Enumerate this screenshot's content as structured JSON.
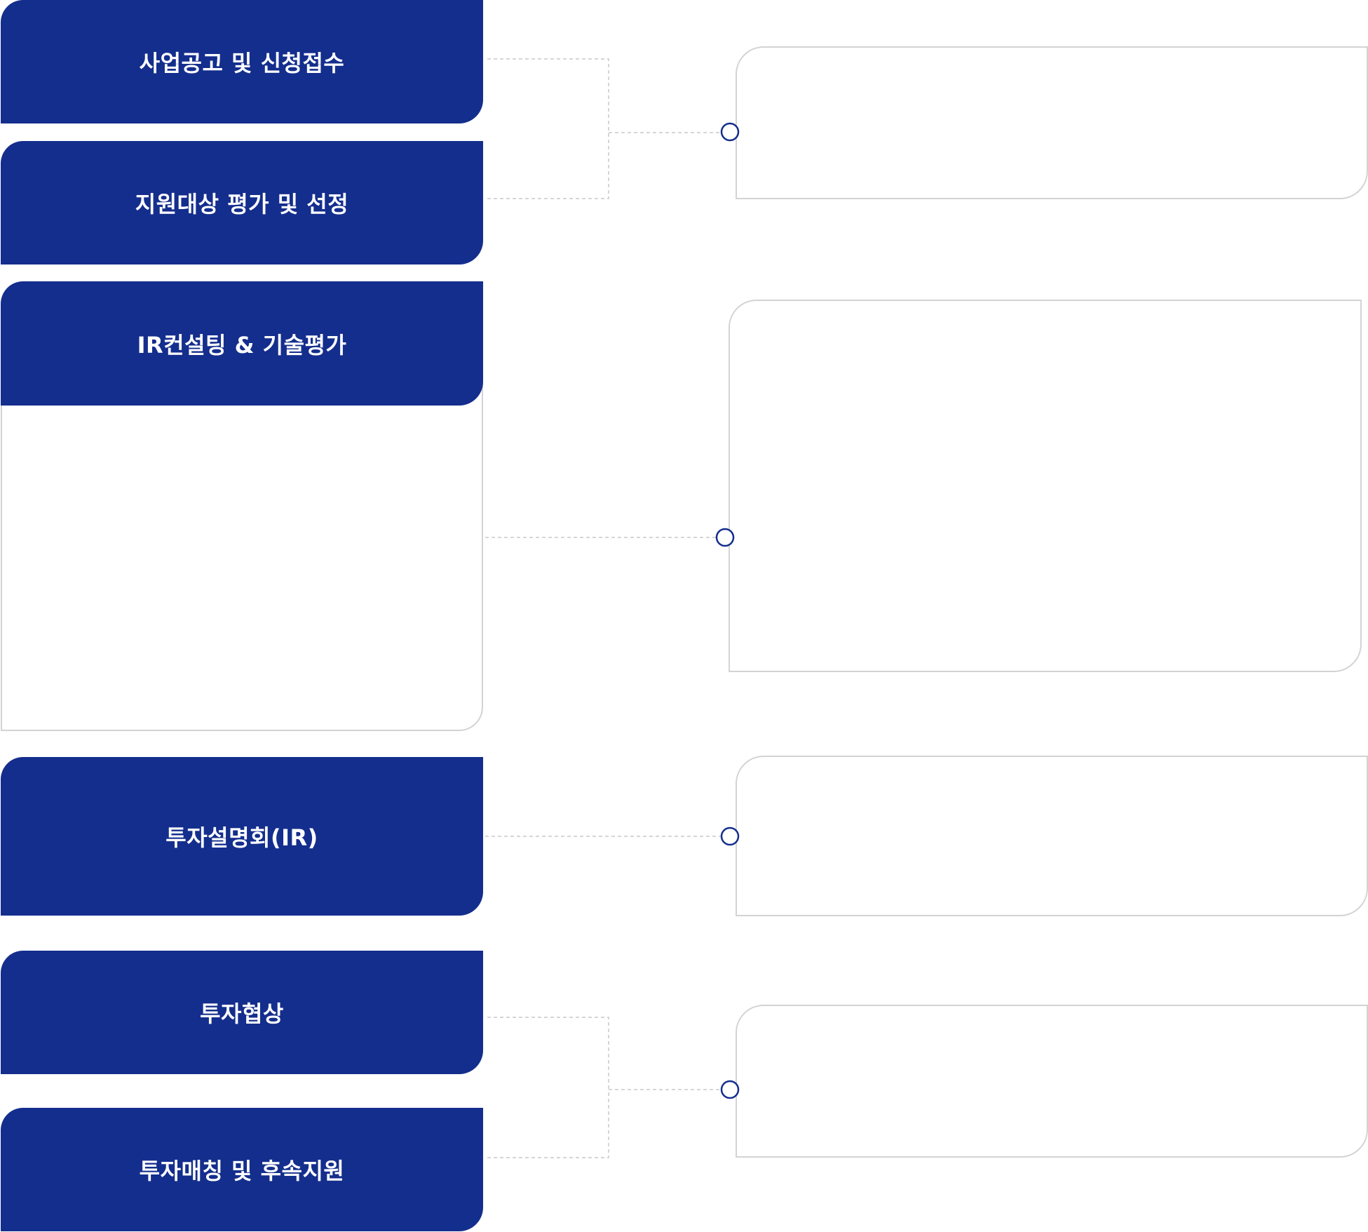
{
  "process": {
    "steps": [
      {
        "label": "사업공고 및 신청접수"
      },
      {
        "label": "지원대상 평가 및 선정"
      },
      {
        "label": "IR컨설팅 & 기술평가"
      },
      {
        "label": "투자설명회(IR)"
      },
      {
        "label": "투자협상"
      },
      {
        "label": "투자매칭 및 후속지원"
      }
    ]
  },
  "colors": {
    "step_fill": "#142e8d",
    "step_text": "#ffffff",
    "box_border": "#d3d3d6",
    "connector_line": "#c9c9cc",
    "connector_node": "#142e8d"
  }
}
